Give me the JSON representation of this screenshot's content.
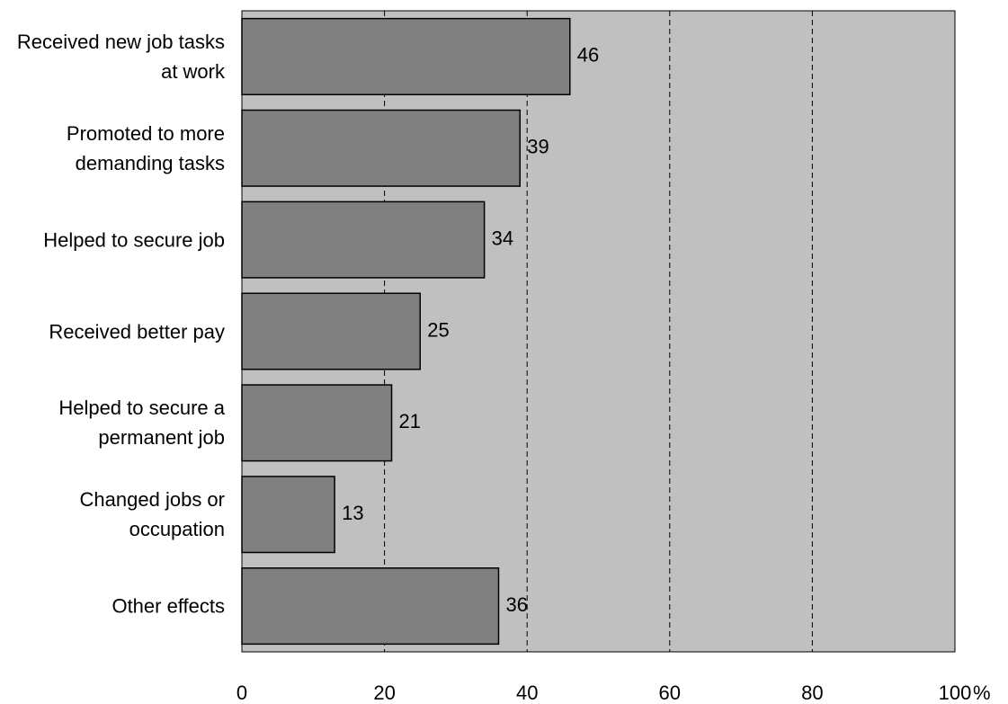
{
  "chart_data": {
    "type": "bar",
    "orientation": "horizontal",
    "categories": [
      "Received new job tasks at work",
      "Promoted to more demanding tasks",
      "Helped to secure job",
      "Received better pay",
      "Helped to secure a permanent job",
      "Changed jobs or occupation",
      "Other effects"
    ],
    "values": [
      46,
      39,
      34,
      25,
      21,
      13,
      36
    ],
    "color": "#808080",
    "plot_background": "#c0c0c0",
    "xlim": [
      0,
      100
    ],
    "xticks": [
      0,
      20,
      40,
      60,
      80,
      100
    ],
    "x_unit": "%",
    "grid": true
  }
}
